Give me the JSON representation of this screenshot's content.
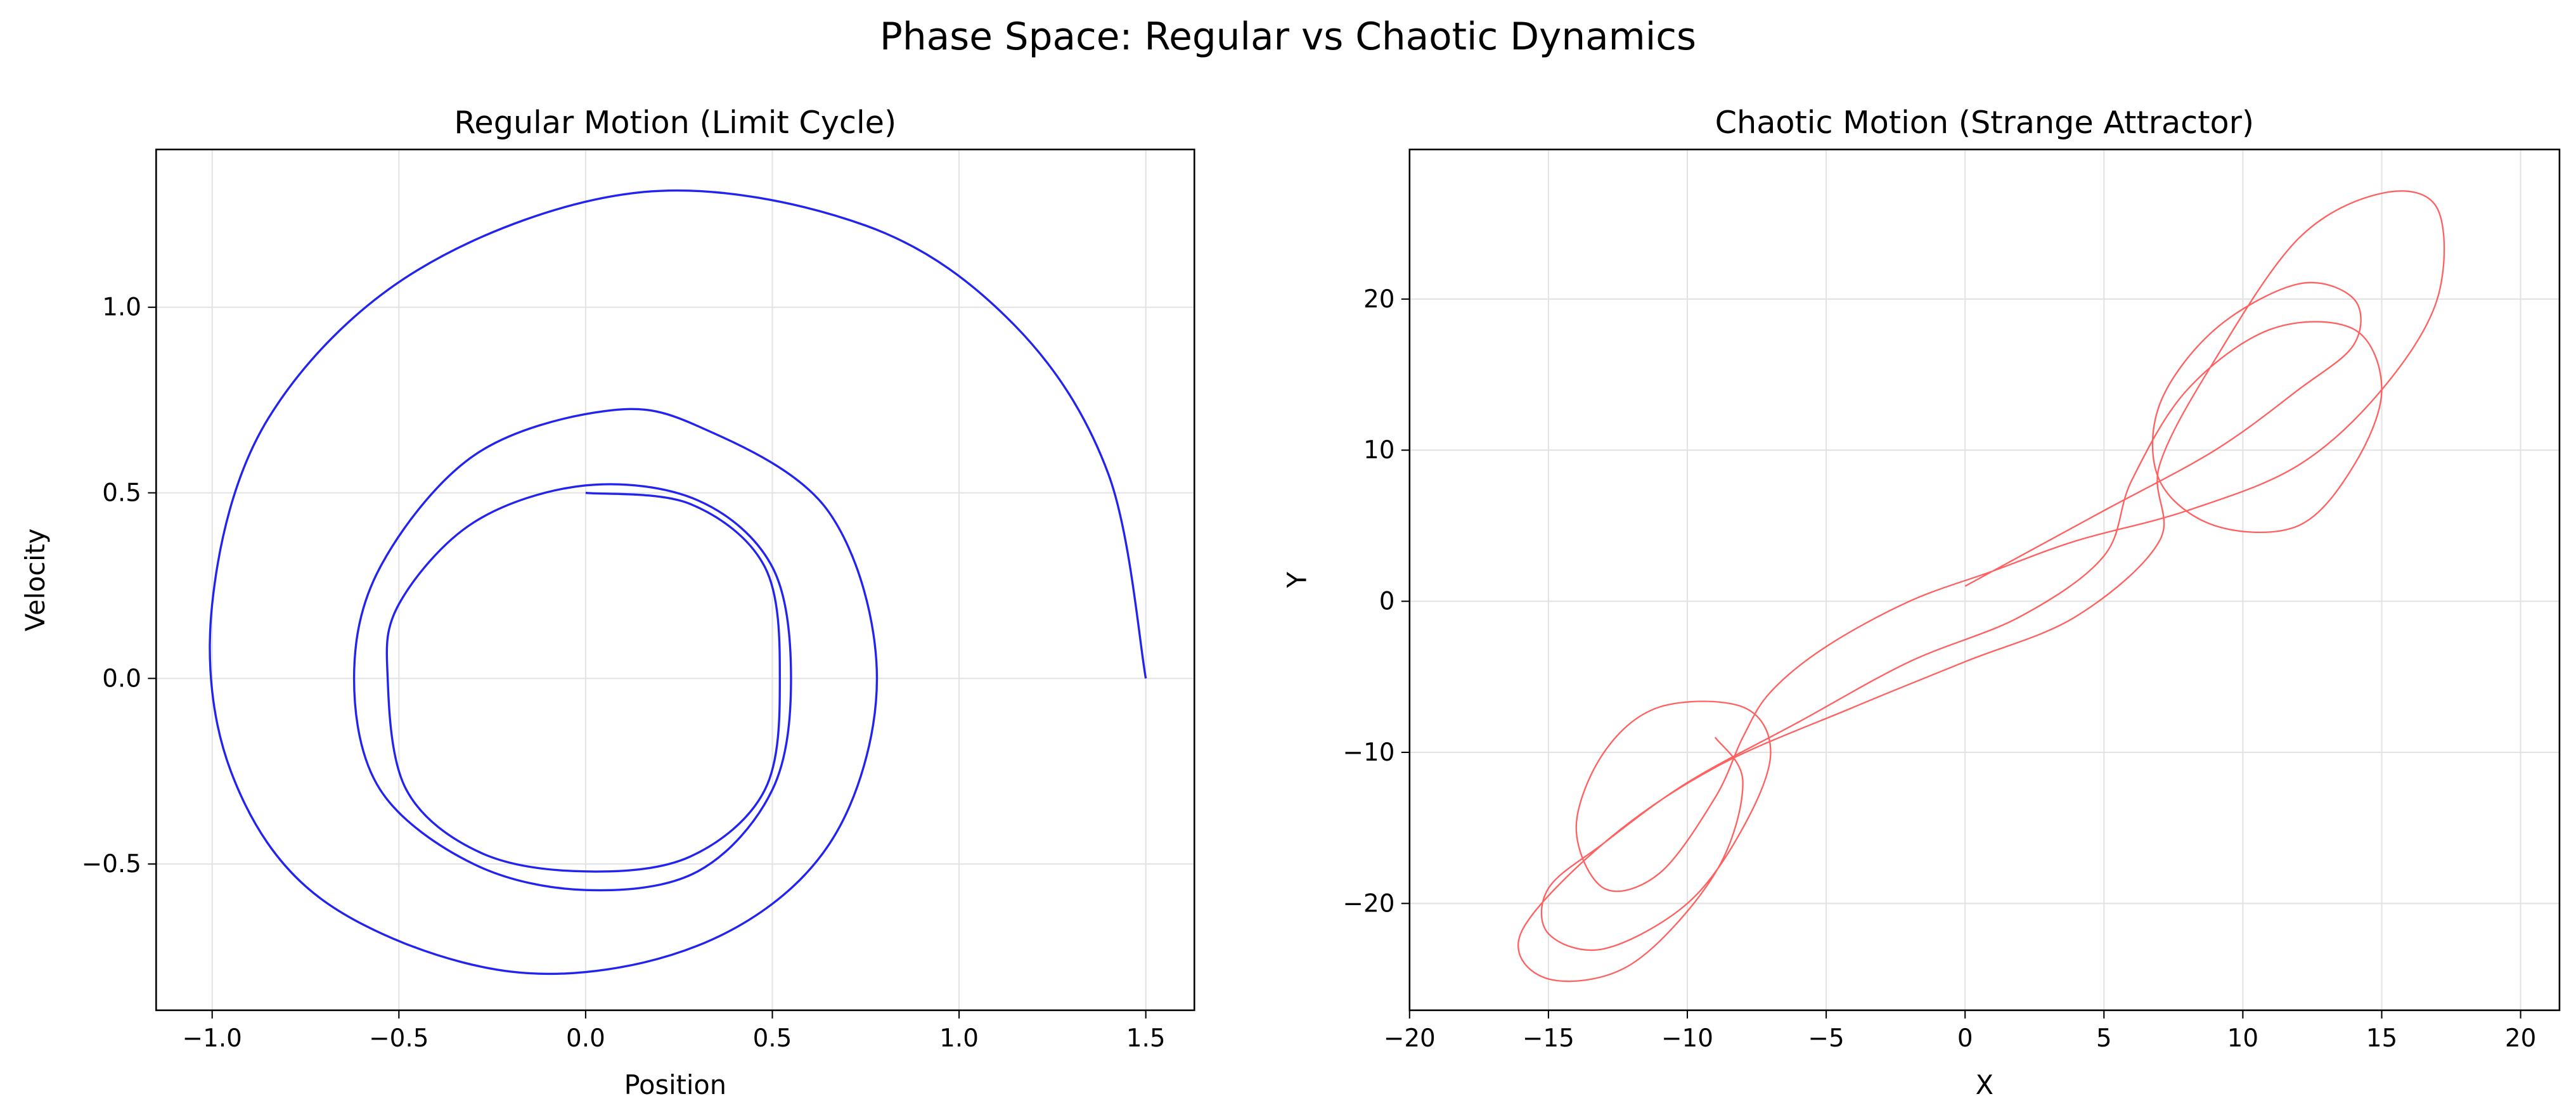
{
  "title": "Phase Space: Regular vs Chaotic Dynamics",
  "chart_data": [
    {
      "type": "line",
      "title": "Regular Motion (Limit Cycle)",
      "xlabel": "Position",
      "ylabel": "Velocity",
      "grid": true,
      "xlim": [
        -1.15,
        1.63
      ],
      "ylim": [
        -0.894,
        1.425
      ],
      "xticks": [
        {
          "value": -1,
          "label": "−1.0"
        },
        {
          "value": -0.5,
          "label": "−0.5"
        },
        {
          "value": 0,
          "label": "0.0"
        },
        {
          "value": 0.5,
          "label": "0.5"
        },
        {
          "value": 1,
          "label": "1.0"
        },
        {
          "value": 1.5,
          "label": "1.5"
        }
      ],
      "yticks": [
        {
          "value": -0.5,
          "label": "−0.5"
        },
        {
          "value": 0,
          "label": "0.0"
        },
        {
          "value": 0.5,
          "label": "0.5"
        },
        {
          "value": 1,
          "label": "1.0"
        }
      ],
      "series": [
        {
          "color": "#2323f0",
          "x": [
            1.5,
            1.4,
            1.15,
            0.75,
            0.15,
            -0.45,
            -0.85,
            -1.0,
            -0.95,
            -0.7,
            -0.2,
            0.3,
            0.65,
            0.78,
            0.65,
            0.3,
            0.05,
            -0.3,
            -0.55,
            -0.62,
            -0.55,
            -0.3,
            0,
            0.3,
            0.5,
            0.55,
            0.5,
            0.3,
            0,
            -0.3,
            -0.5,
            -0.53,
            -0.48,
            -0.28,
            0,
            0.28,
            0.48,
            0.52,
            0.48,
            0.28,
            0
          ],
          "values": [
            0,
            0.55,
            0.95,
            1.22,
            1.31,
            1.1,
            0.7,
            0.2,
            -0.25,
            -0.6,
            -0.79,
            -0.72,
            -0.45,
            0,
            0.45,
            0.68,
            0.72,
            0.6,
            0.3,
            0,
            -0.3,
            -0.5,
            -0.57,
            -0.52,
            -0.3,
            0,
            0.3,
            0.48,
            0.52,
            0.42,
            0.2,
            0,
            -0.3,
            -0.47,
            -0.52,
            -0.48,
            -0.3,
            0,
            0.3,
            0.47,
            0.5
          ]
        }
      ]
    },
    {
      "type": "line",
      "title": "Chaotic Motion (Strange Attractor)",
      "xlabel": "X",
      "ylabel": "Y",
      "grid": true,
      "xlim": [
        -20.0,
        21.4
      ],
      "ylim": [
        -27.07,
        29.9
      ],
      "xticks": [
        {
          "value": -20,
          "label": "−20"
        },
        {
          "value": -15,
          "label": "−15"
        },
        {
          "value": -10,
          "label": "−10"
        },
        {
          "value": -5,
          "label": "−5"
        },
        0,
        5,
        10,
        15,
        20
      ],
      "yticks": [
        {
          "value": -20,
          "label": "−20"
        },
        {
          "value": -10,
          "label": "−10"
        },
        0,
        10,
        20
      ],
      "series": [
        {
          "color": "#ff4545",
          "x": [
            0,
            2,
            5,
            9,
            12,
            14,
            14,
            12,
            9,
            7,
            7,
            9,
            12,
            14,
            15,
            14,
            11,
            8,
            6,
            5,
            2,
            -2,
            -6,
            -10,
            -13,
            -15,
            -15,
            -13,
            -10,
            -8,
            -7,
            -8,
            -11,
            -13,
            -14,
            -13,
            -11,
            -9,
            -8,
            -7,
            -5,
            -2,
            1,
            4,
            8,
            12,
            15,
            17,
            17,
            15,
            12,
            9,
            7,
            7,
            4,
            0,
            -4,
            -9,
            -13,
            -16,
            -15,
            -12,
            -9,
            -8,
            -9
          ],
          "values": [
            1,
            3,
            6,
            10,
            14,
            17,
            20,
            21,
            18,
            13,
            8,
            5,
            5,
            9,
            14,
            18,
            18,
            14,
            8,
            3,
            -1,
            -4,
            -8,
            -12,
            -16,
            -19,
            -22,
            -23,
            -20,
            -15,
            -10,
            -7,
            -7,
            -10,
            -15,
            -19,
            -18,
            -13,
            -9,
            -6,
            -3,
            0,
            2,
            4,
            6,
            9,
            14,
            20,
            26,
            27,
            24,
            16,
            9,
            4,
            -1,
            -4,
            -7,
            -11,
            -16,
            -22,
            -25,
            -24,
            -18,
            -12,
            -9
          ]
        }
      ]
    }
  ]
}
